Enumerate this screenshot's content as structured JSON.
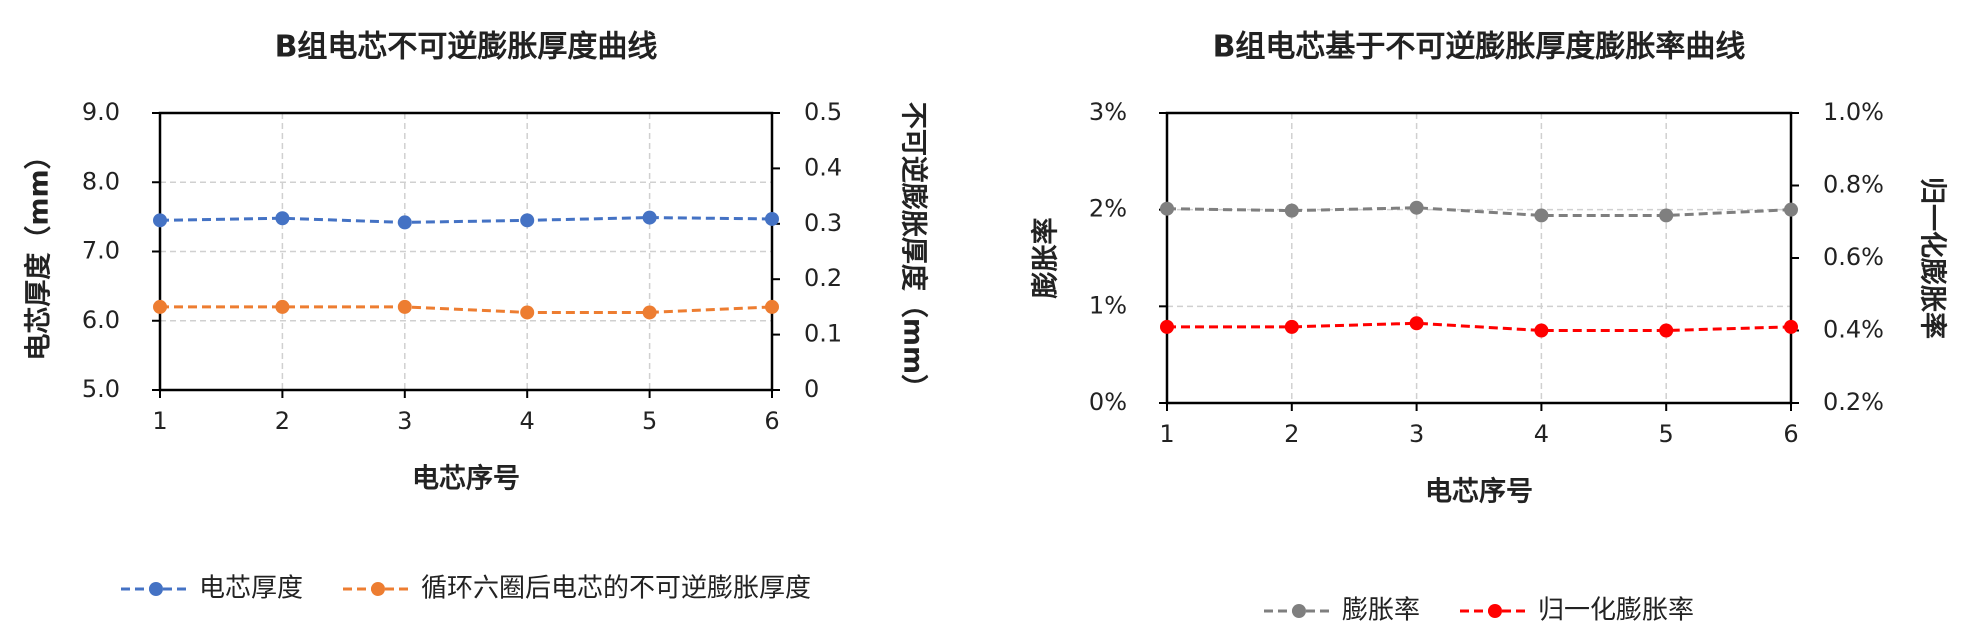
{
  "chart_data": [
    {
      "type": "line",
      "title": "B组电芯不可逆膨胀厚度曲线",
      "x_label": "电芯序号",
      "y_label": "电芯厚度（mm）",
      "y2_label": "不可逆膨胀厚度（mm）",
      "x": [
        1,
        2,
        3,
        4,
        5,
        6
      ],
      "xlim": [
        1,
        6
      ],
      "xticks": [
        1,
        2,
        3,
        4,
        5,
        6
      ],
      "ylim": [
        5,
        9
      ],
      "yticks": [
        {
          "value": 5,
          "label": "5.0"
        },
        {
          "value": 6,
          "label": "6.0"
        },
        {
          "value": 7,
          "label": "7.0"
        },
        {
          "value": 8,
          "label": "8.0"
        },
        {
          "value": 9,
          "label": "9.0"
        }
      ],
      "y2lim": [
        0,
        0.5
      ],
      "y2ticks": [
        0,
        0.1,
        0.2,
        0.3,
        0.4,
        0.5
      ],
      "grid": true,
      "legend": "bottom",
      "series": [
        {
          "name": "电芯厚度",
          "color": "#4472c4",
          "values": [
            7.45,
            7.48,
            7.42,
            7.45,
            7.49,
            7.47
          ]
        },
        {
          "name": "循环六圈后电芯的不可逆膨胀厚度",
          "color": "#ed7d31",
          "axis": "y2",
          "values": [
            0.15,
            0.15,
            0.15,
            0.14,
            0.14,
            0.15
          ]
        }
      ]
    },
    {
      "type": "line",
      "title": "B组电芯基于不可逆膨胀厚度膨胀率曲线",
      "x_label": "电芯序号",
      "y_label": "膨胀率",
      "y2_label": "归一化膨胀率",
      "x": [
        1,
        2,
        3,
        4,
        5,
        6
      ],
      "xlim": [
        1,
        6
      ],
      "xticks": [
        1,
        2,
        3,
        4,
        5,
        6
      ],
      "ylim": [
        0,
        3
      ],
      "yticks": [
        {
          "value": 0,
          "label": "0%"
        },
        {
          "value": 1,
          "label": "1%"
        },
        {
          "value": 2,
          "label": "2%"
        },
        {
          "value": 3,
          "label": "3%"
        }
      ],
      "y2lim": [
        0.2,
        1.0
      ],
      "y2ticks": [
        {
          "value": 0.2,
          "label": "0.2%"
        },
        {
          "value": 0.4,
          "label": "0.4%"
        },
        {
          "value": 0.6,
          "label": "0.6%"
        },
        {
          "value": 0.8,
          "label": "0.8%"
        },
        {
          "value": 1.0,
          "label": "1.0%"
        }
      ],
      "grid": true,
      "legend": "bottom",
      "series": [
        {
          "name": "膨胀率",
          "color": "#7f7f7f",
          "values": [
            2.01,
            1.99,
            2.02,
            1.94,
            1.94,
            2.0
          ]
        },
        {
          "name": "归一化膨胀率",
          "color": "#ff0000",
          "axis": "y2",
          "values": [
            0.41,
            0.41,
            0.42,
            0.4,
            0.4,
            0.41
          ]
        }
      ]
    }
  ]
}
